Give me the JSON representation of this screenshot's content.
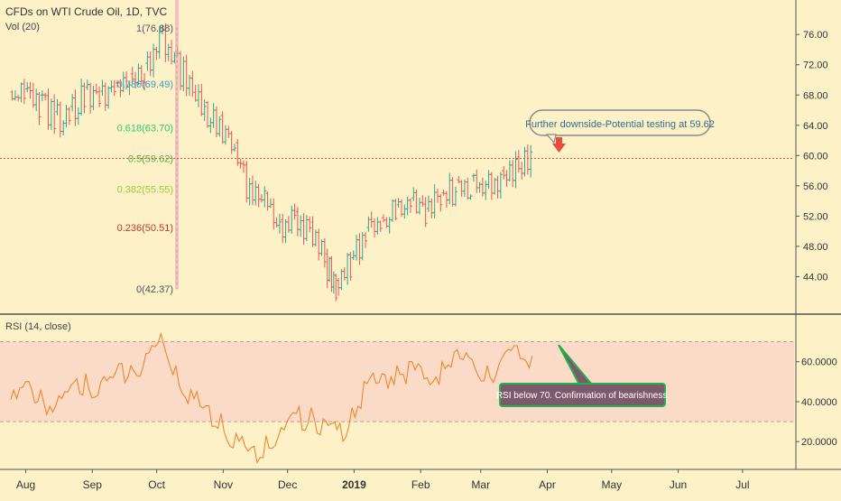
{
  "header": {
    "title": "CFDs on WTI Crude Oil, 1D, TVC",
    "volume_label": "Vol (20)"
  },
  "colors": {
    "background": "#fdf1c8",
    "up_candle": "#26a69a",
    "down_candle": "#ef5350",
    "rsi_line": "#f0852d",
    "rsi_band": "#f6d2c8",
    "callout_red": "#e74c3c",
    "note_fill": "#7d5a6b",
    "note_border": "#22b14c"
  },
  "chart_data": [
    {
      "type": "candlestick",
      "title": "CFDs on WTI Crude Oil, 1D, TVC",
      "yaxis": {
        "ticks": [
          "76.00",
          "72.00",
          "68.00",
          "64.00",
          "60.00",
          "56.00",
          "52.00",
          "48.00",
          "44.00"
        ],
        "range": [
          40.0,
          79.6
        ],
        "position": "right"
      },
      "xaxis": {
        "ticks": [
          "Aug",
          "Sep",
          "Oct",
          "Nov",
          "Dec",
          "2019",
          "Feb",
          "Mar",
          "Apr",
          "May",
          "Jun",
          "Jul"
        ]
      },
      "grid": false,
      "series_close": [
        {
          "x": "2018-07-25",
          "y": 68.4
        },
        {
          "x": "2018-08-01",
          "y": 68.8
        },
        {
          "x": "2018-08-08",
          "y": 68.0
        },
        {
          "x": "2018-08-15",
          "y": 65.8
        },
        {
          "x": "2018-08-22",
          "y": 66.5
        },
        {
          "x": "2018-08-29",
          "y": 69.0
        },
        {
          "x": "2018-09-05",
          "y": 68.5
        },
        {
          "x": "2018-09-12",
          "y": 69.6
        },
        {
          "x": "2018-09-19",
          "y": 70.8
        },
        {
          "x": "2018-09-26",
          "y": 72.2
        },
        {
          "x": "2018-10-03",
          "y": 76.4
        },
        {
          "x": "2018-10-10",
          "y": 73.5
        },
        {
          "x": "2018-10-17",
          "y": 70.2
        },
        {
          "x": "2018-10-24",
          "y": 67.0
        },
        {
          "x": "2018-10-31",
          "y": 65.3
        },
        {
          "x": "2018-11-07",
          "y": 61.7
        },
        {
          "x": "2018-11-14",
          "y": 56.3
        },
        {
          "x": "2018-11-21",
          "y": 55.0
        },
        {
          "x": "2018-11-28",
          "y": 51.5
        },
        {
          "x": "2018-12-05",
          "y": 52.6
        },
        {
          "x": "2018-12-12",
          "y": 51.2
        },
        {
          "x": "2018-12-19",
          "y": 47.0
        },
        {
          "x": "2018-12-24",
          "y": 43.5
        },
        {
          "x": "2018-12-31",
          "y": 46.5
        },
        {
          "x": "2019-01-07",
          "y": 50.5
        },
        {
          "x": "2019-01-14",
          "y": 51.8
        },
        {
          "x": "2019-01-21",
          "y": 53.5
        },
        {
          "x": "2019-01-28",
          "y": 54.4
        },
        {
          "x": "2019-02-04",
          "y": 53.0
        },
        {
          "x": "2019-02-11",
          "y": 55.1
        },
        {
          "x": "2019-02-18",
          "y": 56.8
        },
        {
          "x": "2019-02-25",
          "y": 57.3
        },
        {
          "x": "2019-03-04",
          "y": 56.2
        },
        {
          "x": "2019-03-11",
          "y": 58.0
        },
        {
          "x": "2019-03-18",
          "y": 59.8
        },
        {
          "x": "2019-03-25",
          "y": 60.2
        }
      ],
      "fibonacci": [
        {
          "label": "1(76.88)",
          "value": 76.88,
          "color": "#555555"
        },
        {
          "label": "0.786(69.49)",
          "value": 69.49,
          "color": "#3aa0c8"
        },
        {
          "label": "0.618(63.70)",
          "value": 63.7,
          "color": "#2ecc71"
        },
        {
          "label": "0.5(59.62)",
          "value": 59.62,
          "color": "#4caf50"
        },
        {
          "label": "0.382(55.55)",
          "value": 55.55,
          "color": "#9acd32"
        },
        {
          "label": "0.236(50.51)",
          "value": 50.51,
          "color": "#c0392b"
        },
        {
          "label": "0(42.37)",
          "value": 42.37,
          "color": "#555555"
        }
      ],
      "horizontal_line": 59.62,
      "callout": "Further downside-Potential testing at 59.62"
    },
    {
      "type": "line",
      "title": "RSI (14, close)",
      "yaxis": {
        "ticks": [
          "60.0000",
          "40.0000",
          "20.0000"
        ],
        "range": [
          7.0,
          82.0
        ],
        "position": "right"
      },
      "band": [
        30,
        70
      ],
      "series": [
        {
          "x": "2018-07-25",
          "y": 41
        },
        {
          "x": "2018-08-01",
          "y": 50
        },
        {
          "x": "2018-08-08",
          "y": 46
        },
        {
          "x": "2018-08-15",
          "y": 38
        },
        {
          "x": "2018-08-22",
          "y": 48
        },
        {
          "x": "2018-08-29",
          "y": 54
        },
        {
          "x": "2018-09-05",
          "y": 50
        },
        {
          "x": "2018-09-12",
          "y": 55
        },
        {
          "x": "2018-09-19",
          "y": 58
        },
        {
          "x": "2018-09-26",
          "y": 64
        },
        {
          "x": "2018-10-03",
          "y": 74
        },
        {
          "x": "2018-10-10",
          "y": 58
        },
        {
          "x": "2018-10-17",
          "y": 46
        },
        {
          "x": "2018-10-24",
          "y": 38
        },
        {
          "x": "2018-10-31",
          "y": 34
        },
        {
          "x": "2018-11-07",
          "y": 24
        },
        {
          "x": "2018-11-14",
          "y": 17
        },
        {
          "x": "2018-11-21",
          "y": 23
        },
        {
          "x": "2018-11-28",
          "y": 27
        },
        {
          "x": "2018-12-05",
          "y": 34
        },
        {
          "x": "2018-12-12",
          "y": 37
        },
        {
          "x": "2018-12-19",
          "y": 30
        },
        {
          "x": "2018-12-24",
          "y": 26
        },
        {
          "x": "2018-12-31",
          "y": 37
        },
        {
          "x": "2019-01-07",
          "y": 49
        },
        {
          "x": "2019-01-14",
          "y": 54
        },
        {
          "x": "2019-01-21",
          "y": 58
        },
        {
          "x": "2019-01-28",
          "y": 60
        },
        {
          "x": "2019-02-04",
          "y": 52
        },
        {
          "x": "2019-02-11",
          "y": 60
        },
        {
          "x": "2019-02-18",
          "y": 66
        },
        {
          "x": "2019-02-25",
          "y": 61
        },
        {
          "x": "2019-03-04",
          "y": 58
        },
        {
          "x": "2019-03-11",
          "y": 62
        },
        {
          "x": "2019-03-18",
          "y": 68
        },
        {
          "x": "2019-03-25",
          "y": 63
        }
      ],
      "note": "RSI below 70. Confirmation of bearishness."
    }
  ]
}
